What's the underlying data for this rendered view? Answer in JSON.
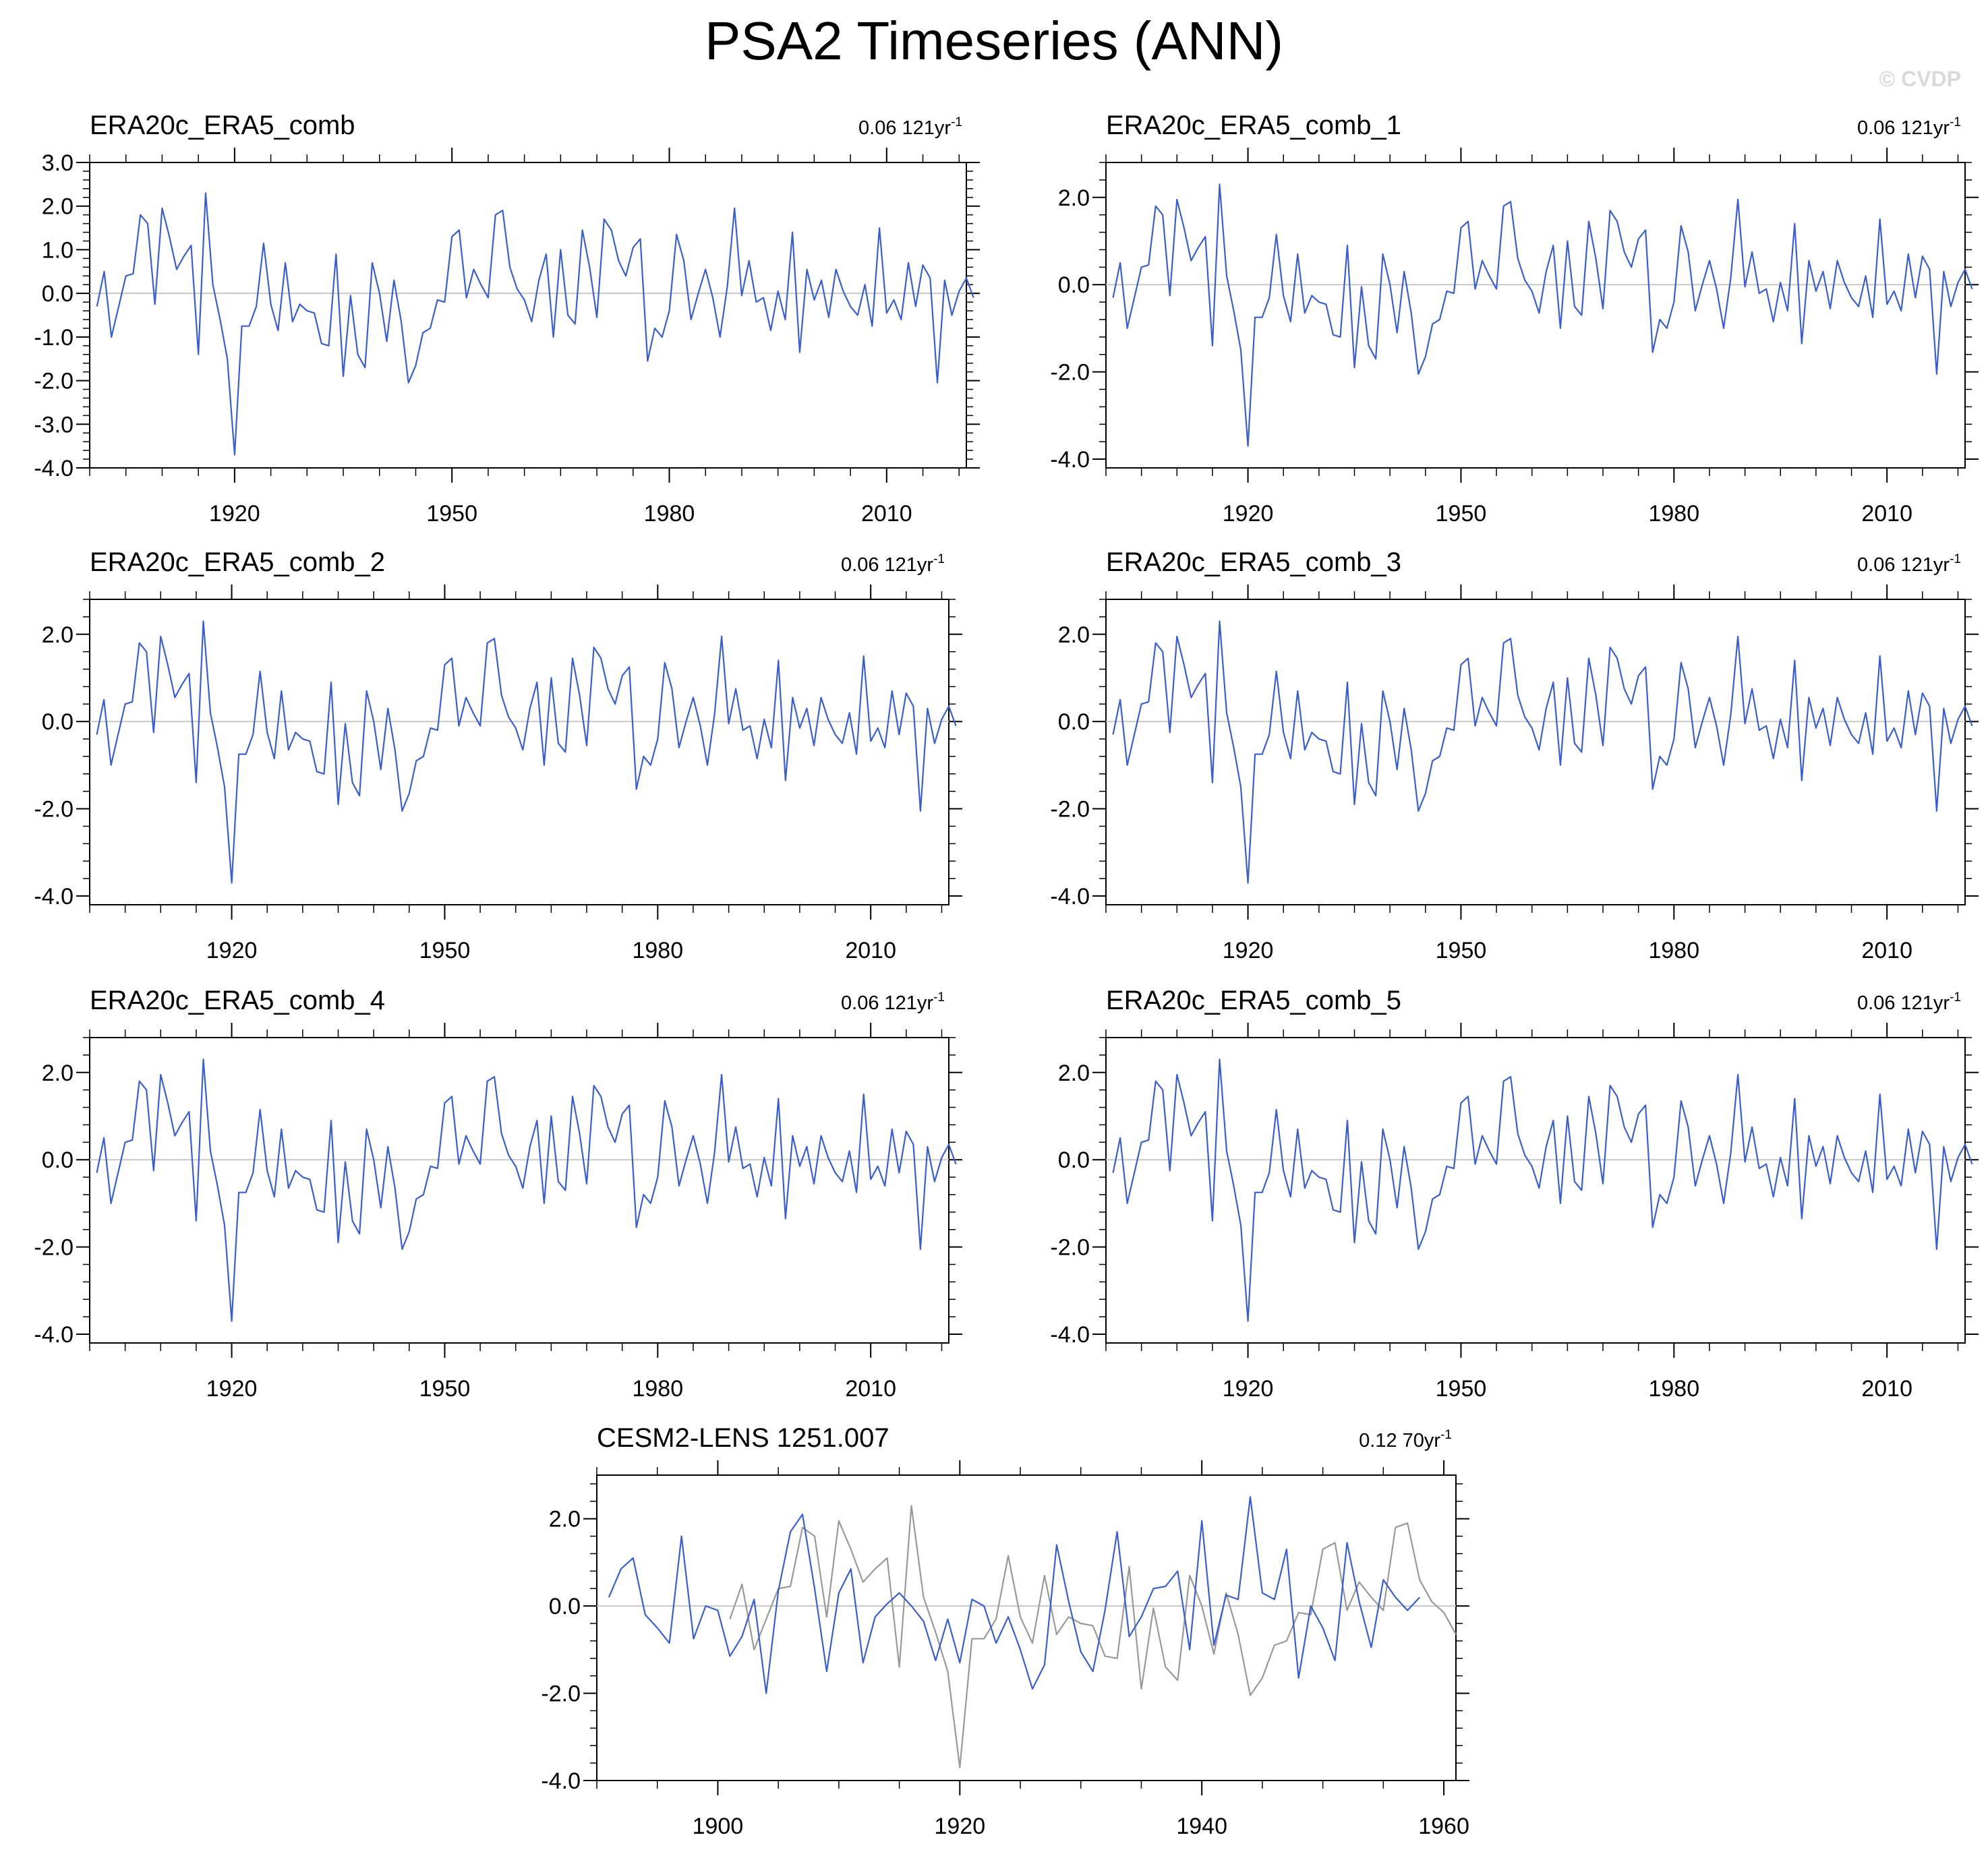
{
  "figure": {
    "title": "PSA2 Timeseries (ANN)",
    "credit": "© CVDP"
  },
  "colors": {
    "observed": "#3a5fcd",
    "observed_in_model_panel": "#999999",
    "model": "#3a5fcd",
    "zero_line": "#c8c8c8",
    "axis": "#000000"
  },
  "chart_data": [
    {
      "type": "line",
      "title": "ERA20c_ERA5_comb",
      "trend_value": "0.06",
      "trend_period": "121yr",
      "trend_exponent": "-1",
      "xlim": [
        1900,
        2021
      ],
      "ylim": [
        -4.0,
        3.0
      ],
      "x_ticks": [
        1920,
        1950,
        1980,
        2010
      ],
      "y_ticks": [
        3.0,
        2.0,
        1.0,
        0.0,
        -1.0,
        -2.0,
        -3.0,
        -4.0
      ],
      "y_tick_labels": [
        "3.0",
        "2.0",
        "1.0",
        "0.0",
        "-1.0",
        "-2.0",
        "-3.0",
        "-4.0"
      ],
      "zero_line": true,
      "series": [
        {
          "source": "obs"
        }
      ]
    },
    {
      "type": "line",
      "title": "ERA20c_ERA5_comb_1",
      "trend_value": "0.06",
      "trend_period": "121yr",
      "trend_exponent": "-1",
      "xlim": [
        1900,
        2021
      ],
      "ylim": [
        -4.2,
        2.8
      ],
      "x_ticks": [
        1920,
        1950,
        1980,
        2010
      ],
      "y_ticks": [
        2.0,
        0.0,
        -2.0,
        -4.0
      ],
      "y_tick_labels": [
        "2.0",
        "0.0",
        "-2.0",
        "-4.0"
      ],
      "zero_line": true,
      "series": [
        {
          "source": "obs"
        }
      ]
    },
    {
      "type": "line",
      "title": "ERA20c_ERA5_comb_2",
      "trend_value": "0.06",
      "trend_period": "121yr",
      "trend_exponent": "-1",
      "xlim": [
        1900,
        2021
      ],
      "ylim": [
        -4.2,
        2.8
      ],
      "x_ticks": [
        1920,
        1950,
        1980,
        2010
      ],
      "y_ticks": [
        2.0,
        0.0,
        -2.0,
        -4.0
      ],
      "y_tick_labels": [
        "2.0",
        "0.0",
        "-2.0",
        "-4.0"
      ],
      "zero_line": true,
      "series": [
        {
          "source": "obs"
        }
      ]
    },
    {
      "type": "line",
      "title": "ERA20c_ERA5_comb_3",
      "trend_value": "0.06",
      "trend_period": "121yr",
      "trend_exponent": "-1",
      "xlim": [
        1900,
        2021
      ],
      "ylim": [
        -4.2,
        2.8
      ],
      "x_ticks": [
        1920,
        1950,
        1980,
        2010
      ],
      "y_ticks": [
        2.0,
        0.0,
        -2.0,
        -4.0
      ],
      "y_tick_labels": [
        "2.0",
        "0.0",
        "-2.0",
        "-4.0"
      ],
      "zero_line": true,
      "series": [
        {
          "source": "obs"
        }
      ]
    },
    {
      "type": "line",
      "title": "ERA20c_ERA5_comb_4",
      "trend_value": "0.06",
      "trend_period": "121yr",
      "trend_exponent": "-1",
      "xlim": [
        1900,
        2021
      ],
      "ylim": [
        -4.2,
        2.8
      ],
      "x_ticks": [
        1920,
        1950,
        1980,
        2010
      ],
      "y_ticks": [
        2.0,
        0.0,
        -2.0,
        -4.0
      ],
      "y_tick_labels": [
        "2.0",
        "0.0",
        "-2.0",
        "-4.0"
      ],
      "zero_line": true,
      "series": [
        {
          "source": "obs"
        }
      ]
    },
    {
      "type": "line",
      "title": "ERA20c_ERA5_comb_5",
      "trend_value": "0.06",
      "trend_period": "121yr",
      "trend_exponent": "-1",
      "xlim": [
        1900,
        2021
      ],
      "ylim": [
        -4.2,
        2.8
      ],
      "x_ticks": [
        1920,
        1950,
        1980,
        2010
      ],
      "y_ticks": [
        2.0,
        0.0,
        -2.0,
        -4.0
      ],
      "y_tick_labels": [
        "2.0",
        "0.0",
        "-2.0",
        "-4.0"
      ],
      "zero_line": true,
      "series": [
        {
          "source": "obs"
        }
      ]
    },
    {
      "type": "line",
      "title": "CESM2-LENS 1251.007",
      "trend_value": "0.12",
      "trend_period": "70yr",
      "trend_exponent": "-1",
      "xlim": [
        1890,
        1961
      ],
      "ylim": [
        -4.0,
        3.0
      ],
      "x_ticks": [
        1900,
        1920,
        1940,
        1960
      ],
      "y_ticks": [
        2.0,
        0.0,
        -2.0,
        -4.0
      ],
      "y_tick_labels": [
        "2.0",
        "0.0",
        "-2.0",
        "-4.0"
      ],
      "zero_line": true,
      "series": [
        {
          "source": "obs_in_model_window"
        },
        {
          "source": "model",
          "x_start": 1891,
          "values": [
            0.2,
            0.85,
            1.1,
            -0.2,
            -0.5,
            -0.85,
            1.6,
            -0.75,
            0.0,
            -0.1,
            -1.15,
            -0.7,
            0.15,
            -2.0,
            0.35,
            1.7,
            2.1,
            0.4,
            -1.5,
            0.3,
            0.85,
            -1.3,
            -0.25,
            0.05,
            0.3,
            0.0,
            -0.35,
            -1.25,
            -0.3,
            -1.3,
            0.15,
            0.0,
            -0.85,
            -0.25,
            -1.0,
            -1.9,
            -1.35,
            1.4,
            0.1,
            -1.05,
            -1.5,
            -0.1,
            1.7,
            -0.7,
            -0.25,
            0.4,
            0.45,
            0.8,
            -1.0,
            1.95,
            -0.9,
            0.25,
            0.15,
            2.5,
            0.3,
            0.15,
            1.3,
            -1.65,
            0.0,
            -0.5,
            -1.25,
            1.45,
            0.1,
            -0.95,
            0.6,
            0.2,
            -0.1,
            0.2
          ]
        }
      ]
    }
  ],
  "obs_series": {
    "name": "ERA20c_ERA5_comb",
    "x_start": 1901,
    "values": [
      -0.3,
      0.5,
      -1.0,
      -0.3,
      0.4,
      0.45,
      1.8,
      1.6,
      -0.25,
      1.95,
      1.3,
      0.55,
      0.85,
      1.1,
      -1.4,
      2.3,
      0.2,
      -0.6,
      -1.5,
      -3.7,
      -0.75,
      -0.75,
      -0.3,
      1.15,
      -0.25,
      -0.85,
      0.7,
      -0.65,
      -0.25,
      -0.4,
      -0.45,
      -1.15,
      -1.2,
      0.9,
      -1.9,
      -0.05,
      -1.4,
      -1.7,
      0.7,
      0.0,
      -1.1,
      0.3,
      -0.65,
      -2.05,
      -1.65,
      -0.9,
      -0.8,
      -0.15,
      -0.2,
      1.3,
      1.45,
      -0.1,
      0.55,
      0.2,
      -0.1,
      1.8,
      1.9,
      0.6,
      0.1,
      -0.15,
      -0.65,
      0.3,
      0.9,
      -1.0,
      1.0,
      -0.5,
      -0.7,
      1.45,
      0.6,
      -0.55,
      1.7,
      1.45,
      0.75,
      0.4,
      1.05,
      1.25,
      -1.55,
      -0.8,
      -1.0,
      -0.4,
      1.35,
      0.75,
      -0.6,
      0.0,
      0.55,
      -0.1,
      -1.0,
      0.15,
      1.95,
      -0.05,
      0.75,
      -0.2,
      -0.1,
      -0.85,
      0.05,
      -0.6,
      1.4,
      -1.35,
      0.55,
      -0.15,
      0.3,
      -0.55,
      0.55,
      0.05,
      -0.3,
      -0.5,
      0.2,
      -0.75,
      1.5,
      -0.45,
      -0.15,
      -0.6,
      0.7,
      -0.3,
      0.65,
      0.35,
      -2.05,
      0.3,
      -0.5,
      0.05,
      0.35,
      -0.1
    ]
  }
}
